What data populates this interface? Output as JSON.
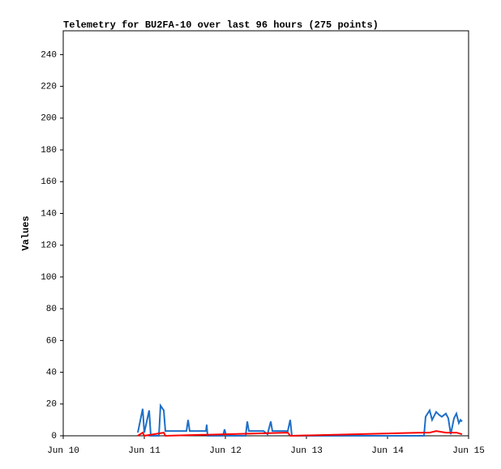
{
  "chart_data": {
    "type": "line",
    "title": "Telemetry for BU2FA-10 over last 96 hours (275 points)",
    "y_label": "Values",
    "xlim": [
      0,
      120
    ],
    "xticks": [
      {
        "value": 0,
        "label": "Jun 10"
      },
      {
        "value": 24,
        "label": "Jun 11"
      },
      {
        "value": 48,
        "label": "Jun 12"
      },
      {
        "value": 72,
        "label": "Jun 13"
      },
      {
        "value": 96,
        "label": "Jun 14"
      },
      {
        "value": 120,
        "label": "Jun 15"
      }
    ],
    "ylim": [
      0,
      255
    ],
    "yticks": [
      0,
      20,
      40,
      60,
      80,
      100,
      120,
      140,
      160,
      180,
      200,
      220,
      240
    ],
    "grid": false,
    "series": [
      {
        "color": "#1f6fc6",
        "x": [
          22.08,
          23.52,
          24,
          25.44,
          25.92,
          28.32,
          28.8,
          29.76,
          30.24,
          36.48,
          36.96,
          37.44,
          42.24,
          42.48,
          42.72,
          47.28,
          47.76,
          48.24,
          54,
          54.48,
          54.96,
          59.28,
          60.48,
          61.44,
          61.92,
          66.48,
          67.2,
          67.68,
          106.8,
          107.28,
          108.48,
          109.2,
          110.4,
          111.36,
          112.08,
          113.28,
          114,
          114.72,
          115.68,
          116.4,
          117.12,
          117.6,
          118.08
        ],
        "values": [
          2,
          17,
          2,
          16,
          0,
          0,
          19,
          16,
          3,
          3,
          10,
          3,
          3,
          7,
          0,
          0,
          4,
          0,
          0,
          9,
          3,
          3,
          1,
          9,
          3,
          3,
          10,
          0,
          0,
          12,
          16,
          10,
          15,
          13,
          12,
          14,
          11,
          1,
          11,
          14,
          8,
          10,
          9
        ]
      },
      {
        "color": "#ff0000",
        "x": [
          22.08,
          23.52,
          24,
          29.76,
          30.24,
          66.48,
          67.2,
          106.8,
          108.48,
          110.4,
          113.28,
          116.4,
          118.08
        ],
        "values": [
          0,
          2,
          0,
          2,
          0,
          2,
          0,
          2,
          2,
          3,
          2,
          2,
          1
        ]
      }
    ]
  }
}
